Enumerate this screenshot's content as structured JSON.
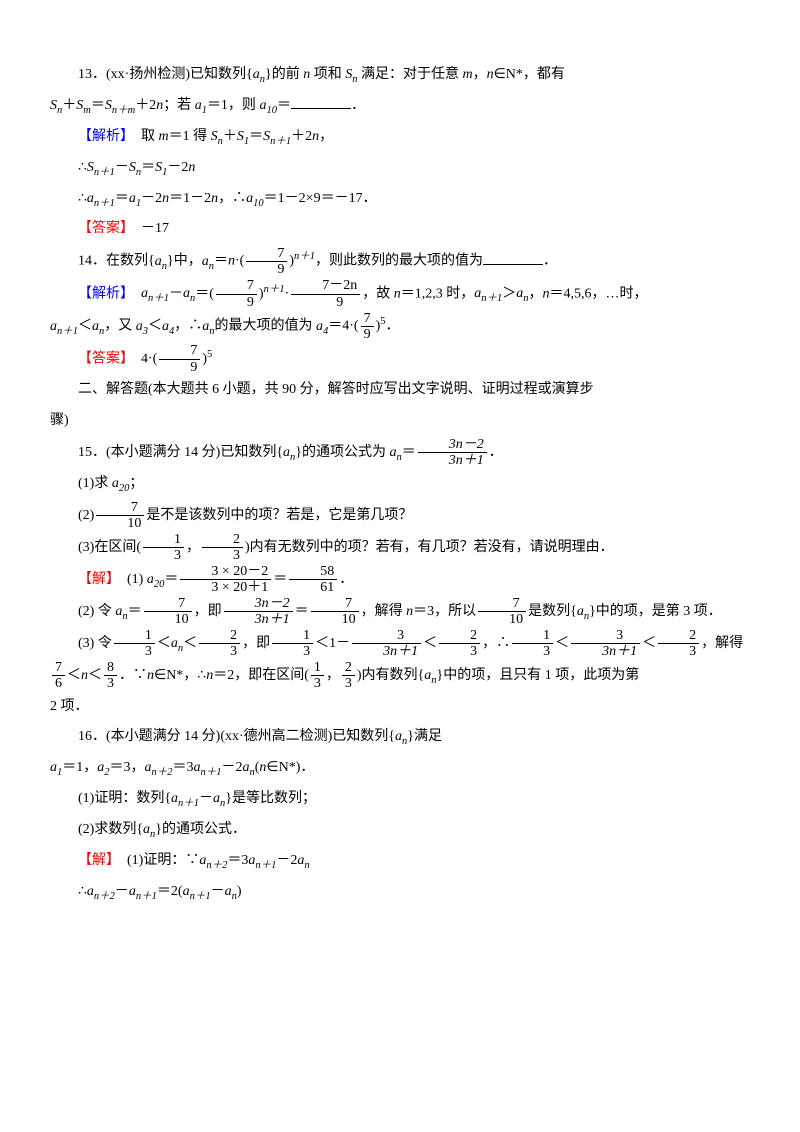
{
  "q13": {
    "text_a": "13．(xx·扬州检测)已知数列{",
    "an": "a",
    "text_b": "}的前 ",
    "n": "n",
    "text_c": " 项和 ",
    "Sn": "S",
    "text_d": " 满足：对于任意 ",
    "m": "m",
    "comma": "，",
    "text_e": "∈N*，都有",
    "line2_a": "S",
    "plus": "＋",
    "eq": "＝",
    "plus2n": "＋2",
    "semi": "；若 ",
    "a1eq1": "＝1，则 ",
    "a10": "a",
    "eq_blank": "＝",
    "period": "．"
  },
  "q13_sol": {
    "label": "【解析】",
    "l1": "　取 ",
    "m1": "m",
    "eq1": "＝1 得 ",
    "rest1": "，",
    "l2": "∴",
    "l3": "∴",
    "a_n1": "a",
    "eq2": "＝",
    "minus2n": "－2",
    "eq3": "＝1－2",
    "comma2": "，∴",
    "a10v": "＝1－2×9＝－17．",
    "ans_label": "【答案】",
    "ans": "　－17"
  },
  "q14": {
    "text_a": "14．在数列{",
    "text_b": "}中，",
    "eq": "＝",
    "dot": "·",
    "frac_num": "7",
    "frac_den": "9",
    "paren_l": "(",
    "paren_r": ")",
    "exp": "n＋1",
    "text_c": "，则此数列的最大项的值为",
    "period": "．"
  },
  "q14_sol": {
    "label": "【解析】",
    "sp": "　",
    "minus": "－",
    "eq": "＝",
    "dot": "·",
    "f1n": "7",
    "f1d": "9",
    "f2n": "7－2n",
    "f2d": "9",
    "text_a": "，故 ",
    "n123": "n",
    "eq123": "＝1,2,3 时，",
    "gt": "＞",
    "comma": "，",
    "n456": "＝4,5,6，…时，",
    "lt": "＜",
    "also": "又 ",
    "a3": "a",
    "lt2": "＜",
    "a4": "a",
    "therefore": "，∴",
    "max_text": "的最大项的值为 ",
    "eq4": "＝4·",
    "exp5": "5",
    "period": "．",
    "ans_label": "【答案】",
    "ans_a": "　4·",
    "ans_exp": "5"
  },
  "sec2": {
    "title": "二、解答题(本大题共 6 小题，共 90 分，解答时应写出文字说明、证明过程或演算步",
    "title2": "骤)"
  },
  "q15": {
    "text_a": "15．(本小题满分 14 分)已知数列{",
    "text_b": "}的通项公式为 ",
    "eq": "＝",
    "fn": "3n－2",
    "fd": "3n＋1",
    "period": "．",
    "p1": "(1)求 ",
    "a20": "a",
    "semi": "；",
    "p2_a": "(2)",
    "f2n": "7",
    "f2d": "10",
    "p2_b": "是不是该数列中的项？若是，它是第几项？",
    "p3_a": "(3)在区间(",
    "f3n1": "1",
    "f3d1": "3",
    "comma": "，",
    "f3n2": "2",
    "f3d2": "3",
    "p3_b": ")内有无数列中的项？若有，有几项？若没有，请说明理由．"
  },
  "q15_sol": {
    "label": "【解】",
    "s1_a": "　(1) ",
    "a20": "a",
    "eq": "＝",
    "f1n": "3 × 20－2",
    "f1d": "3 × 20＋1",
    "eq2": "＝",
    "f2n": "58",
    "f2d": "61",
    "period": "．",
    "s2_a": "(2) 令 ",
    "an": "a",
    "eq3": "＝",
    "f3n": "7",
    "f3d": "10",
    "s2_b": "，即",
    "f4n": "3n－2",
    "f4d": "3n＋1",
    "eq4": "＝",
    "s2_c": "，解得 ",
    "n3": "n",
    "eq5": "＝3，所以",
    "s2_d": "是数列{",
    "s2_e": "}中的项，是第 3 项．",
    "s3_a": "(3) 令",
    "f5n": "1",
    "f5d": "3",
    "lt": "＜",
    "f6n": "2",
    "f6d": "3",
    "s3_b": "，即",
    "lt2": "＜1－",
    "f7n": "3",
    "f7d": "3n＋1",
    "s3_c": "，∴",
    "s3_d": "，解得",
    "s3_line2_a": "",
    "f8n": "7",
    "f8d": "6",
    "f9n": "8",
    "f9d": "3",
    "s3_e": "．∵",
    "nN": "n",
    "s3_f": "∈N*，∴",
    "eq6": "＝2，即在区间(",
    "s3_g": ")内有数列{",
    "s3_h": "}中的项，且只有 1 项，此项为第",
    "s3_i": "2 项．"
  },
  "q16": {
    "text_a": "16．(本小题满分 14 分)(xx·德州高二检测)已知数列{",
    "text_b": "}满足",
    "l2_a": "a",
    "eq1": "＝1，",
    "eq3": "＝3，",
    "rec": "＝3",
    "minus2": "－2",
    "paren": "(",
    "nN": "n",
    "inN": "∈N*)．",
    "p1_a": "(1)证明：数列{",
    "p1_b": "}是等比数列；",
    "p2_a": "(2)求数列{",
    "p2_b": "}的通项公式．"
  },
  "q16_sol": {
    "label": "【解】",
    "s1": "　(1)证明：∵",
    "rec": "＝3",
    "minus2": "－2",
    "l2": "∴",
    "eq2": "＝2(",
    "rp": ")"
  }
}
